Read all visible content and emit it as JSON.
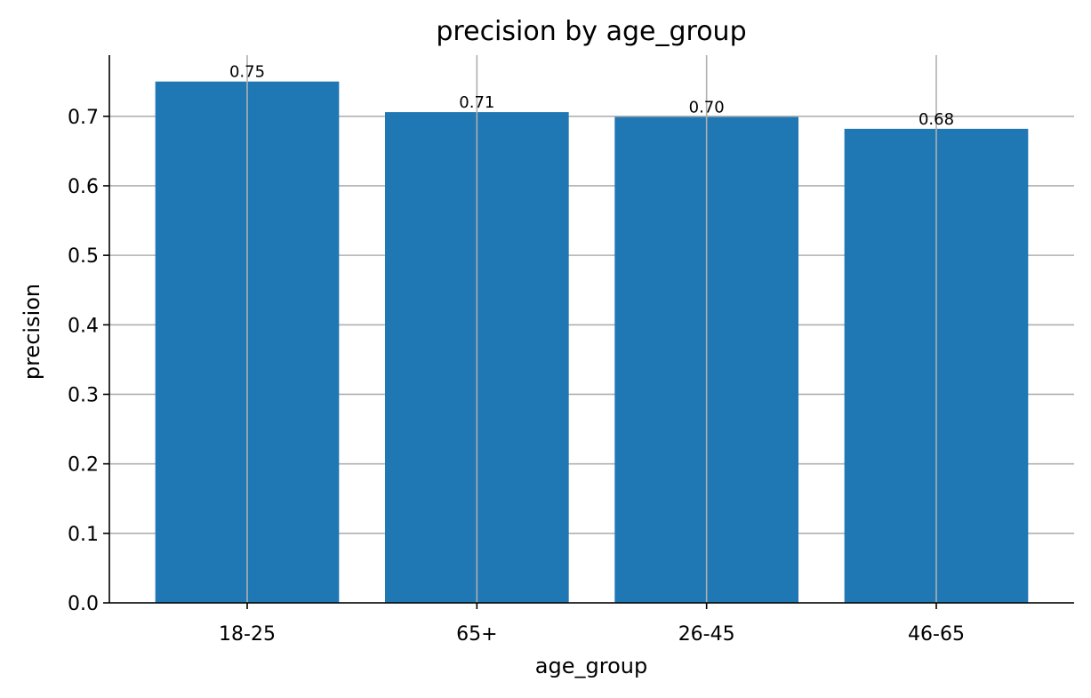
{
  "chart_data": {
    "type": "bar",
    "title": "precision by age_group",
    "xlabel": "age_group",
    "ylabel": "precision",
    "categories": [
      "18-25",
      "65+",
      "26-45",
      "46-65"
    ],
    "values": [
      0.75,
      0.706,
      0.699,
      0.682
    ],
    "data_labels": [
      "0.75",
      "0.71",
      "0.70",
      "0.68"
    ],
    "ylim": [
      0,
      0.788
    ],
    "yticks": [
      0.0,
      0.1,
      0.2,
      0.3,
      0.4,
      0.5,
      0.6,
      0.7
    ],
    "ytick_labels": [
      "0.0",
      "0.1",
      "0.2",
      "0.3",
      "0.4",
      "0.5",
      "0.6",
      "0.7"
    ],
    "grid": true,
    "bar_color": "#1f77b4",
    "grid_color": "#b0b0b0"
  }
}
